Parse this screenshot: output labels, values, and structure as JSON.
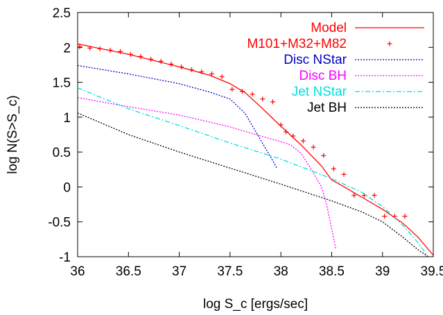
{
  "chart_data": {
    "type": "line",
    "xlabel": "log S_c [ergs/sec]",
    "ylabel": "log N(S>S_c)",
    "xlim": [
      36,
      39.5
    ],
    "ylim": [
      -1,
      2.5
    ],
    "x_ticks": [
      36,
      36.5,
      37,
      37.5,
      38,
      38.5,
      39,
      39.5
    ],
    "y_ticks": [
      -1,
      -0.5,
      0,
      0.5,
      1,
      1.5,
      2,
      2.5
    ],
    "x_tick_labels": [
      "36",
      "36.5",
      "37",
      "37.5",
      "38",
      "38.5",
      "39",
      "39.5"
    ],
    "y_tick_labels": [
      "-1",
      "-0.5",
      "0",
      "0.5",
      "1",
      "1.5",
      "2",
      "2.5"
    ],
    "grid": false,
    "legend_position": "top-right",
    "series": [
      {
        "name": "Model",
        "kind": "line",
        "style": "solid",
        "color": "#ff0000",
        "x": [
          36.0,
          36.5,
          37.0,
          37.3,
          37.5,
          37.65,
          37.8,
          38.0,
          38.2,
          38.4,
          38.5,
          38.6,
          38.8,
          39.0,
          39.2,
          39.35,
          39.5
        ],
        "y": [
          2.05,
          1.9,
          1.72,
          1.6,
          1.48,
          1.35,
          1.15,
          0.87,
          0.6,
          0.3,
          0.1,
          0.02,
          -0.15,
          -0.32,
          -0.52,
          -0.72,
          -0.98
        ]
      },
      {
        "name": "M101+M32+M82",
        "kind": "points",
        "marker": "plus",
        "color": "#ff0000",
        "x": [
          36.02,
          36.12,
          36.22,
          36.32,
          36.42,
          36.52,
          36.62,
          36.72,
          36.82,
          36.92,
          37.02,
          37.12,
          37.22,
          37.32,
          37.42,
          37.52,
          37.62,
          37.72,
          37.82,
          37.92,
          38.0,
          38.05,
          38.12,
          38.22,
          38.32,
          38.42,
          38.52,
          38.62,
          38.72,
          38.82,
          38.92,
          39.02,
          39.12,
          39.22
        ],
        "y": [
          2.01,
          1.99,
          1.98,
          1.96,
          1.94,
          1.9,
          1.87,
          1.83,
          1.8,
          1.76,
          1.72,
          1.68,
          1.65,
          1.62,
          1.58,
          1.4,
          1.37,
          1.33,
          1.26,
          1.22,
          0.89,
          0.79,
          0.73,
          0.66,
          0.57,
          0.45,
          0.26,
          0.18,
          -0.12,
          -0.12,
          -0.12,
          -0.42,
          -0.42,
          -0.42
        ]
      },
      {
        "name": "Disc NStar",
        "kind": "line",
        "style": "dotted",
        "color": "#0000c8",
        "x": [
          36.0,
          36.5,
          37.0,
          37.3,
          37.5,
          37.65,
          37.75,
          37.85,
          37.93,
          37.96
        ],
        "y": [
          1.74,
          1.62,
          1.48,
          1.36,
          1.26,
          1.05,
          0.8,
          0.55,
          0.35,
          0.27
        ]
      },
      {
        "name": "Disc BH",
        "kind": "line",
        "style": "dotted",
        "color": "#ff00ff",
        "x": [
          36.0,
          36.5,
          37.0,
          37.5,
          37.8,
          38.0,
          38.1,
          38.2,
          38.3,
          38.4,
          38.45,
          38.5,
          38.54
        ],
        "y": [
          1.28,
          1.15,
          1.03,
          0.86,
          0.73,
          0.65,
          0.6,
          0.48,
          0.25,
          0.0,
          -0.25,
          -0.6,
          -0.88
        ]
      },
      {
        "name": "Jet NStar",
        "kind": "line",
        "style": "dashdot",
        "color": "#00dede",
        "x": [
          36.0,
          36.5,
          37.0,
          37.5,
          38.0,
          38.5,
          38.8,
          39.0,
          39.2,
          39.35,
          39.45
        ],
        "y": [
          1.42,
          1.12,
          0.88,
          0.63,
          0.4,
          0.12,
          -0.08,
          -0.28,
          -0.55,
          -0.8,
          -1.0
        ]
      },
      {
        "name": "Jet BH",
        "kind": "line",
        "style": "dotted",
        "color": "#000000",
        "x": [
          36.0,
          36.5,
          37.0,
          37.5,
          38.0,
          38.5,
          38.8,
          39.0,
          39.2,
          39.35,
          39.45
        ],
        "y": [
          1.06,
          0.75,
          0.5,
          0.27,
          0.04,
          -0.2,
          -0.36,
          -0.5,
          -0.72,
          -0.9,
          -1.0
        ]
      }
    ]
  }
}
